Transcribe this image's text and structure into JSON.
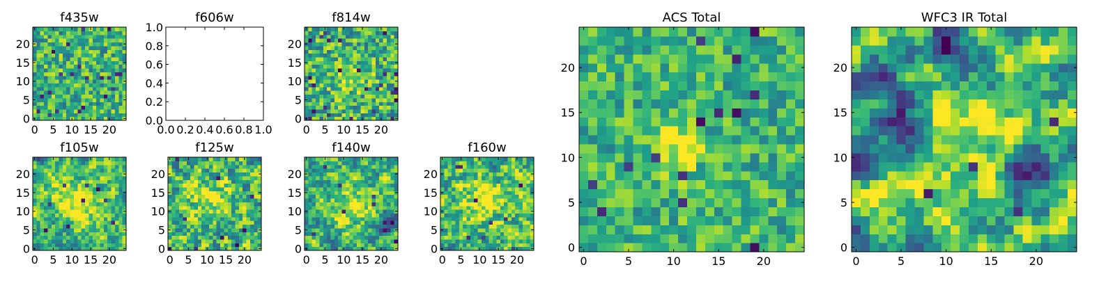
{
  "colormap": "viridis",
  "chart_data": [
    {
      "id": "f435w",
      "type": "heatmap",
      "title": "f435w",
      "grid_size": 25,
      "xlim": [
        0,
        24
      ],
      "ylim": [
        0,
        24
      ],
      "xticks": [
        "0",
        "5",
        "10",
        "15",
        "20"
      ],
      "yticks": [
        "0",
        "5",
        "10",
        "15",
        "20"
      ],
      "has_data": true,
      "seed": 435,
      "smooth": 0,
      "contrast": 0.55,
      "dark_spots": 22,
      "blobs": []
    },
    {
      "id": "f606w",
      "type": "heatmap",
      "title": "f606w",
      "xlim": [
        0,
        1
      ],
      "ylim": [
        0,
        1
      ],
      "xticks": [
        "0.0",
        "0.2",
        "0.4",
        "0.6",
        "0.8",
        "1.0"
      ],
      "yticks": [
        "0.0",
        "0.2",
        "0.4",
        "0.6",
        "0.8",
        "1.0"
      ],
      "has_data": false
    },
    {
      "id": "f814w",
      "type": "heatmap",
      "title": "f814w",
      "grid_size": 25,
      "xlim": [
        0,
        24
      ],
      "ylim": [
        0,
        24
      ],
      "xticks": [
        "0",
        "5",
        "10",
        "15",
        "20"
      ],
      "yticks": [
        "0",
        "5",
        "10",
        "15",
        "20"
      ],
      "has_data": true,
      "seed": 814,
      "smooth": 0,
      "contrast": 0.6,
      "dark_spots": 26,
      "blobs": [
        [
          12,
          11,
          3,
          0.25
        ]
      ]
    },
    {
      "id": "f105w",
      "type": "heatmap",
      "title": "f105w",
      "grid_size": 25,
      "xlim": [
        0,
        24
      ],
      "ylim": [
        0,
        24
      ],
      "xticks": [
        "0",
        "5",
        "10",
        "15",
        "20"
      ],
      "yticks": [
        "0",
        "5",
        "10",
        "15",
        "20"
      ],
      "has_data": true,
      "seed": 105,
      "smooth": 1,
      "contrast": 0.7,
      "dark_spots": 10,
      "blobs": [
        [
          12,
          12,
          4,
          0.35
        ],
        [
          6,
          17,
          3,
          0.15
        ]
      ]
    },
    {
      "id": "f125w",
      "type": "heatmap",
      "title": "f125w",
      "grid_size": 25,
      "xlim": [
        0,
        24
      ],
      "ylim": [
        0,
        24
      ],
      "xticks": [
        "0",
        "5",
        "10",
        "15",
        "20"
      ],
      "yticks": [
        "0",
        "5",
        "10",
        "15",
        "20"
      ],
      "has_data": true,
      "seed": 125,
      "smooth": 1,
      "contrast": 0.7,
      "dark_spots": 9,
      "blobs": [
        [
          11,
          13,
          4,
          0.3
        ]
      ]
    },
    {
      "id": "f140w",
      "type": "heatmap",
      "title": "f140w",
      "grid_size": 25,
      "xlim": [
        0,
        24
      ],
      "ylim": [
        0,
        24
      ],
      "xticks": [
        "0",
        "5",
        "10",
        "15",
        "20"
      ],
      "yticks": [
        "0",
        "5",
        "10",
        "15",
        "20"
      ],
      "has_data": true,
      "seed": 140,
      "smooth": 1,
      "contrast": 0.7,
      "dark_spots": 8,
      "blobs": [
        [
          12,
          11,
          4,
          0.3
        ],
        [
          22,
          7,
          2,
          -0.6
        ]
      ]
    },
    {
      "id": "f160w",
      "type": "heatmap",
      "title": "f160w",
      "grid_size": 25,
      "xlim": [
        0,
        24
      ],
      "ylim": [
        0,
        24
      ],
      "xticks": [
        "0",
        "5",
        "10",
        "15",
        "20"
      ],
      "yticks": [
        "0",
        "5",
        "10",
        "15",
        "20"
      ],
      "has_data": true,
      "seed": 160,
      "smooth": 1,
      "contrast": 0.7,
      "dark_spots": 9,
      "blobs": [
        [
          12,
          13,
          4,
          0.3
        ]
      ]
    },
    {
      "id": "acs",
      "type": "heatmap",
      "title": "ACS Total",
      "grid_size": 25,
      "xlim": [
        0,
        24
      ],
      "ylim": [
        0,
        24
      ],
      "xticks": [
        "0",
        "5",
        "10",
        "15",
        "20"
      ],
      "yticks": [
        "0",
        "5",
        "10",
        "15",
        "20"
      ],
      "has_data": true,
      "seed": 777,
      "smooth": 0,
      "contrast": 0.45,
      "dark_spots": 14,
      "blobs": [
        [
          10,
          11,
          2,
          0.35
        ]
      ]
    },
    {
      "id": "wfc3",
      "type": "heatmap",
      "title": "WFC3 IR Total",
      "grid_size": 25,
      "xlim": [
        0,
        24
      ],
      "ylim": [
        0,
        24
      ],
      "xticks": [
        "0",
        "5",
        "10",
        "15",
        "20"
      ],
      "yticks": [
        "0",
        "5",
        "10",
        "15",
        "20"
      ],
      "has_data": true,
      "seed": 888,
      "smooth": 2,
      "contrast": 0.9,
      "dark_spots": 5,
      "blobs": [
        [
          11,
          12,
          4,
          0.4
        ],
        [
          4,
          14,
          4,
          -0.35
        ],
        [
          20,
          8,
          2,
          -0.6
        ],
        [
          10,
          23,
          2,
          -0.5
        ]
      ]
    }
  ]
}
